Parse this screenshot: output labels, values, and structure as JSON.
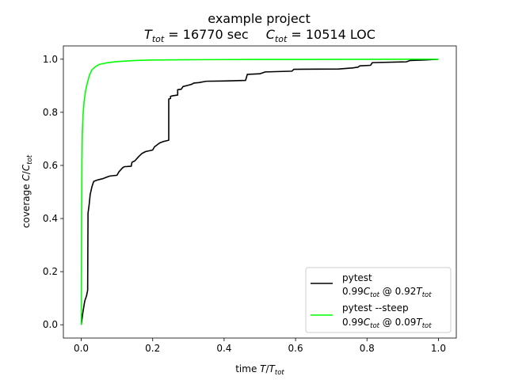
{
  "chart_data": {
    "type": "line",
    "title": {
      "line1": "example project",
      "t_sym": "T",
      "t_sub": "tot",
      "t_rest": " = 16770 sec",
      "c_sym": "C",
      "c_sub": "tot",
      "c_rest": " = 10514 LOC"
    },
    "xlabel": {
      "prefix": "time ",
      "num": "T",
      "slash": "/",
      "den": "T",
      "den_sub": "tot"
    },
    "ylabel": {
      "prefix": "coverage ",
      "num": "C",
      "slash": "/",
      "den": "C",
      "den_sub": "tot"
    },
    "xlim": [
      -0.05,
      1.05
    ],
    "ylim": [
      -0.05,
      1.05
    ],
    "xticks": [
      0.0,
      0.2,
      0.4,
      0.6,
      0.8,
      1.0
    ],
    "yticks": [
      0.0,
      0.2,
      0.4,
      0.6,
      0.8,
      1.0
    ],
    "xtick_labels": [
      "0.0",
      "0.2",
      "0.4",
      "0.6",
      "0.8",
      "1.0"
    ],
    "ytick_labels": [
      "0.0",
      "0.2",
      "0.4",
      "0.6",
      "0.8",
      "1.0"
    ],
    "grid": false,
    "legend_position": "lower-right",
    "series": [
      {
        "name": "pytest",
        "color": "#000000",
        "legend_line2": {
          "a": "0.99",
          "c": "C",
          "c_sub": "tot",
          "mid": " @ 0.92",
          "t": "T",
          "t_sub": "tot"
        },
        "points": [
          [
            0.0,
            0.0
          ],
          [
            0.005,
            0.05
          ],
          [
            0.01,
            0.09
          ],
          [
            0.015,
            0.11
          ],
          [
            0.018,
            0.13
          ],
          [
            0.019,
            0.42
          ],
          [
            0.022,
            0.45
          ],
          [
            0.025,
            0.49
          ],
          [
            0.03,
            0.52
          ],
          [
            0.035,
            0.54
          ],
          [
            0.045,
            0.545
          ],
          [
            0.06,
            0.55
          ],
          [
            0.07,
            0.555
          ],
          [
            0.08,
            0.56
          ],
          [
            0.1,
            0.563
          ],
          [
            0.105,
            0.575
          ],
          [
            0.115,
            0.59
          ],
          [
            0.12,
            0.595
          ],
          [
            0.14,
            0.597
          ],
          [
            0.142,
            0.612
          ],
          [
            0.15,
            0.617
          ],
          [
            0.16,
            0.632
          ],
          [
            0.17,
            0.645
          ],
          [
            0.18,
            0.652
          ],
          [
            0.19,
            0.655
          ],
          [
            0.2,
            0.658
          ],
          [
            0.205,
            0.67
          ],
          [
            0.215,
            0.68
          ],
          [
            0.22,
            0.685
          ],
          [
            0.23,
            0.69
          ],
          [
            0.245,
            0.695
          ],
          [
            0.245,
            0.85
          ],
          [
            0.25,
            0.852
          ],
          [
            0.25,
            0.86
          ],
          [
            0.255,
            0.862
          ],
          [
            0.27,
            0.865
          ],
          [
            0.27,
            0.885
          ],
          [
            0.28,
            0.887
          ],
          [
            0.285,
            0.897
          ],
          [
            0.3,
            0.902
          ],
          [
            0.31,
            0.906
          ],
          [
            0.315,
            0.91
          ],
          [
            0.33,
            0.912
          ],
          [
            0.35,
            0.917
          ],
          [
            0.4,
            0.918
          ],
          [
            0.46,
            0.92
          ],
          [
            0.465,
            0.943
          ],
          [
            0.5,
            0.945
          ],
          [
            0.515,
            0.952
          ],
          [
            0.59,
            0.955
          ],
          [
            0.595,
            0.962
          ],
          [
            0.72,
            0.963
          ],
          [
            0.76,
            0.967
          ],
          [
            0.775,
            0.97
          ],
          [
            0.78,
            0.975
          ],
          [
            0.81,
            0.977
          ],
          [
            0.815,
            0.987
          ],
          [
            0.91,
            0.99
          ],
          [
            0.92,
            0.995
          ],
          [
            0.96,
            0.997
          ],
          [
            1.0,
            1.0
          ]
        ]
      },
      {
        "name": "pytest --steep",
        "color": "#00ff00",
        "legend_line2": {
          "a": "0.99",
          "c": "C",
          "c_sub": "tot",
          "mid": " @ 0.09",
          "t": "T",
          "t_sub": "tot"
        },
        "points": [
          [
            0.0,
            0.0
          ],
          [
            0.001,
            0.4
          ],
          [
            0.002,
            0.62
          ],
          [
            0.003,
            0.72
          ],
          [
            0.005,
            0.79
          ],
          [
            0.008,
            0.84
          ],
          [
            0.012,
            0.88
          ],
          [
            0.017,
            0.91
          ],
          [
            0.023,
            0.94
          ],
          [
            0.03,
            0.96
          ],
          [
            0.04,
            0.972
          ],
          [
            0.05,
            0.98
          ],
          [
            0.07,
            0.986
          ],
          [
            0.1,
            0.991
          ],
          [
            0.15,
            0.995
          ],
          [
            0.2,
            0.997
          ],
          [
            0.3,
            0.998
          ],
          [
            0.5,
            0.999
          ],
          [
            1.0,
            1.0
          ]
        ]
      }
    ]
  }
}
